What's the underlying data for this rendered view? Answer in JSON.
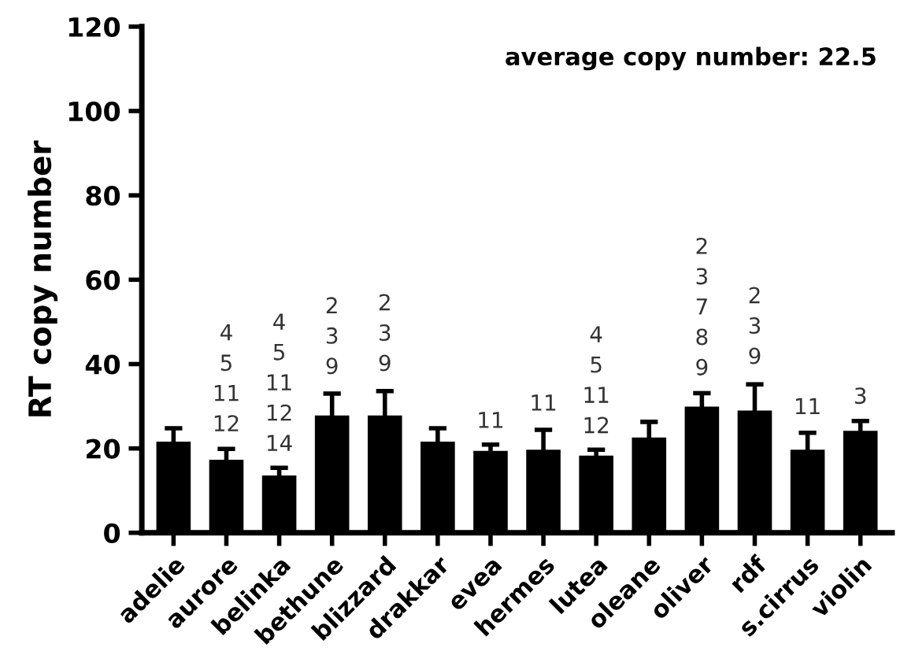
{
  "chart_data": {
    "type": "bar",
    "ylabel": "RT copy number",
    "categories": [
      "adelie",
      "aurore",
      "belinka",
      "bethune",
      "blizzard",
      "drakkar",
      "evea",
      "hermes",
      "lutea",
      "oleane",
      "oliver",
      "rdf",
      "s.cirrus",
      "violin"
    ],
    "values": [
      21.6,
      17.3,
      13.6,
      27.8,
      27.8,
      21.6,
      19.4,
      19.7,
      18.3,
      22.6,
      29.9,
      29.0,
      19.7,
      24.2
    ],
    "errors": [
      3.2,
      2.6,
      1.8,
      5.2,
      5.8,
      3.2,
      1.5,
      4.7,
      1.4,
      3.7,
      3.2,
      6.2,
      4.0,
      2.3
    ],
    "color": "#000000",
    "ylim": [
      0,
      120
    ],
    "yticks": [
      0,
      20,
      40,
      60,
      80,
      100,
      120
    ],
    "grid": false,
    "annotations": [
      "average copy number: 22.5",
      {
        "text": "4\n5\n11\n12",
        "x": "aurore",
        "y": 17.3
      },
      {
        "text": "4\n5\n11\n12\n14",
        "x": "belinka",
        "y": 13.6
      },
      {
        "text": "2\n3\n9",
        "x": "bethune",
        "y": 27.8
      },
      {
        "text": "2\n3\n9",
        "x": "blizzard",
        "y": 27.8
      },
      {
        "text": "11",
        "x": "evea",
        "y": 19.4
      },
      {
        "text": "11",
        "x": "hermes",
        "y": 19.7
      },
      {
        "text": "4\n5\n11\n12",
        "x": "lutea",
        "y": 18.3
      },
      {
        "text": "2\n3\n7\n8\n9",
        "x": "oliver",
        "y": 29.9
      },
      {
        "text": "2\n3\n9",
        "x": "rdf",
        "y": 29.0
      },
      {
        "text": "11",
        "x": "s.cirrus",
        "y": 19.7
      },
      {
        "text": "3",
        "x": "violin",
        "y": 24.2
      }
    ]
  }
}
